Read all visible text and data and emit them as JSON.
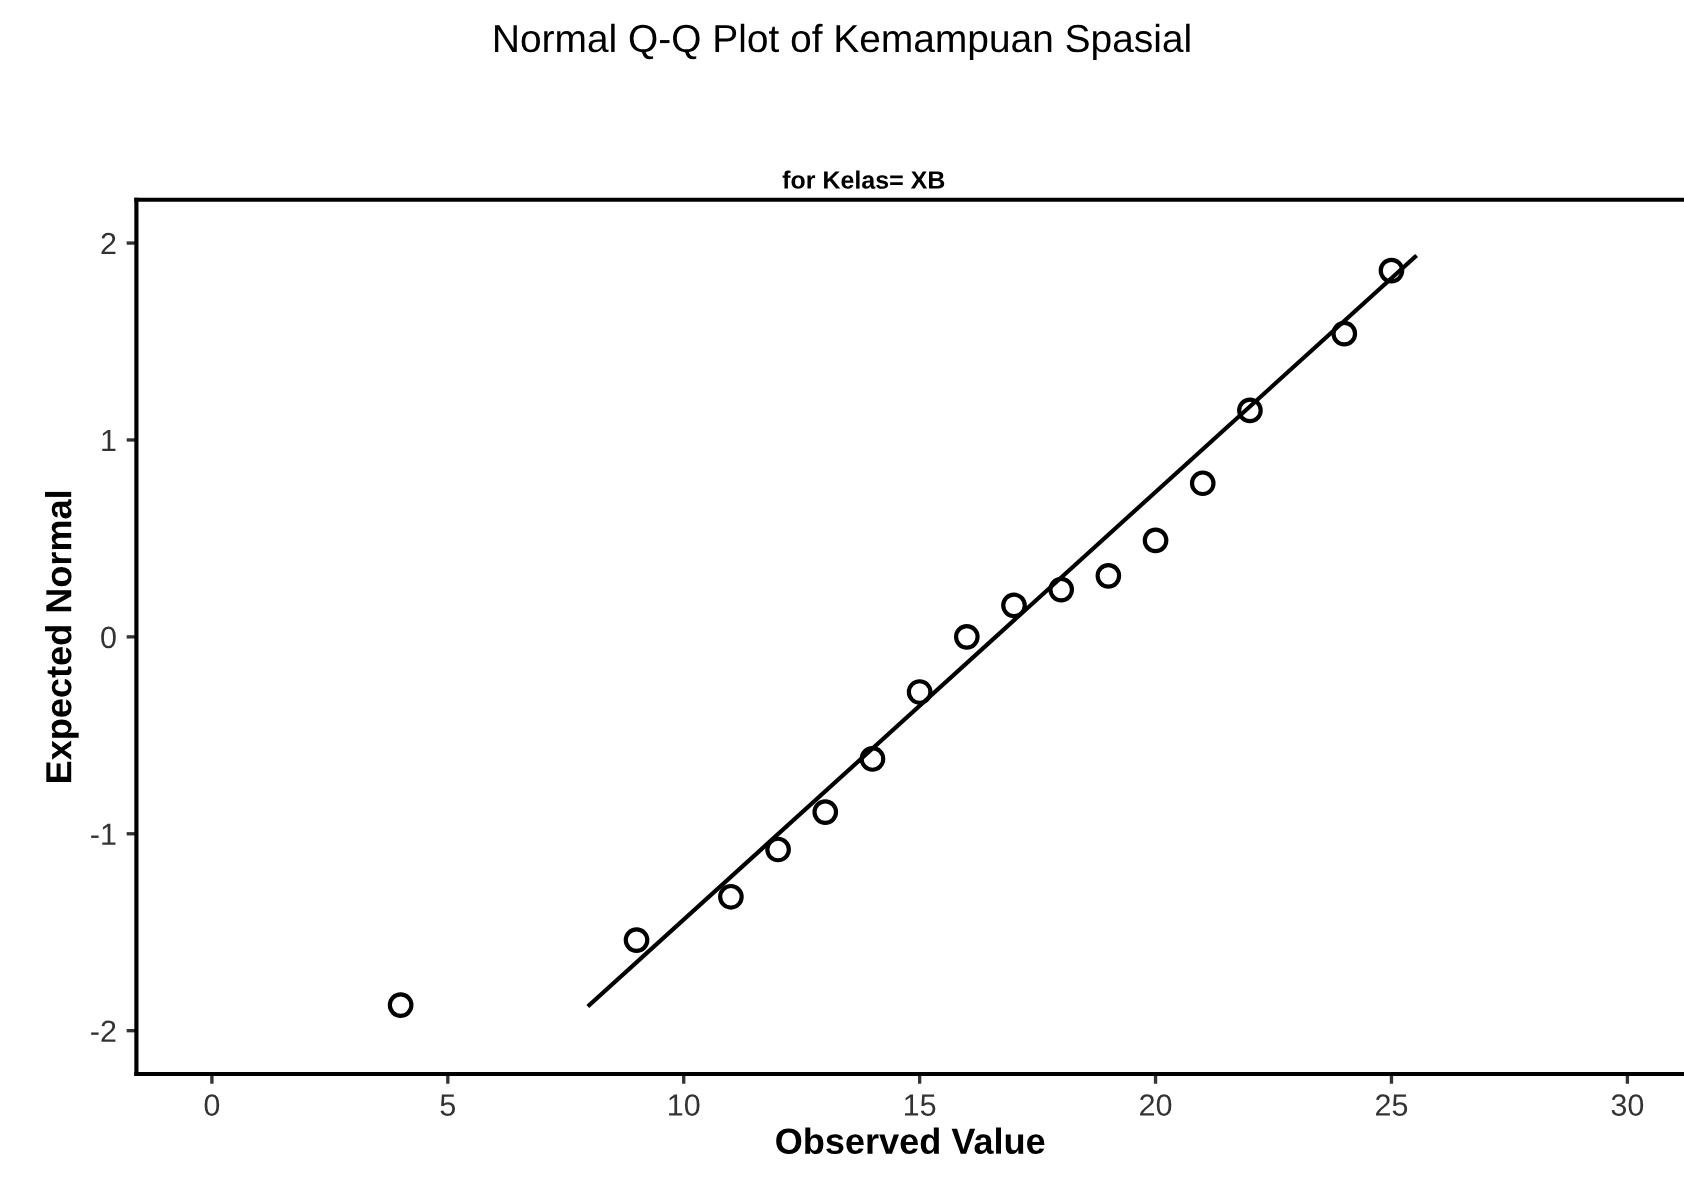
{
  "chart_data": {
    "type": "scatter",
    "title": "Normal Q-Q Plot of Kemampuan Spasial",
    "subtitle": "for Kelas= XB",
    "xlabel": "Observed Value",
    "ylabel": "Expected Normal",
    "series": [
      {
        "color": "#000000",
        "marker": "circle",
        "x": [
          4,
          9,
          11,
          12,
          13,
          14,
          15,
          16,
          17,
          18,
          19,
          20,
          21,
          22,
          24,
          25
        ],
        "values": [
          -1.87,
          -1.54,
          -1.32,
          -1.08,
          -0.89,
          -0.62,
          -0.28,
          0.0,
          0.16,
          0.24,
          0.31,
          0.49,
          0.78,
          1.15,
          1.54,
          1.86
        ]
      },
      {
        "type": "line",
        "color": "#000000",
        "x": [
          8,
          25.5
        ],
        "values": [
          -1.87,
          1.93
        ]
      }
    ],
    "xlim": [
      -1.6,
      31.2
    ],
    "ylim": [
      -2.22,
      2.22
    ],
    "xticks": [
      0,
      5,
      10,
      15,
      20,
      25,
      30
    ],
    "yticks": [
      -2,
      -1,
      0,
      1,
      2
    ],
    "grid": false,
    "legend": false
  }
}
